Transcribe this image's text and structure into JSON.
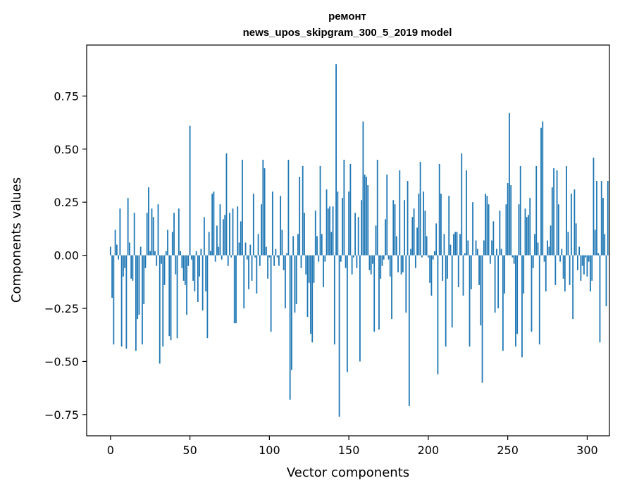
{
  "chart_data": {
    "type": "bar",
    "title_line1": "ремонт",
    "title_line2": "news_upos_skipgram_300_5_2019 model",
    "xlabel": "Vector components",
    "ylabel": "Components values",
    "xlim": [
      -15,
      314
    ],
    "ylim": [
      -0.85,
      0.99
    ],
    "xticks": [
      0,
      50,
      100,
      150,
      200,
      250,
      300
    ],
    "yticks": [
      -0.75,
      -0.5,
      -0.25,
      0.0,
      0.25,
      0.5,
      0.75
    ],
    "xtick_labels": [
      "0",
      "50",
      "100",
      "150",
      "200",
      "250",
      "300"
    ],
    "ytick_labels": [
      "−0.75",
      "−0.50",
      "−0.25",
      "0.00",
      "0.25",
      "0.50",
      "0.75"
    ],
    "bar_color": "#1f77b4",
    "values": [
      0.04,
      -0.2,
      -0.42,
      0.12,
      0.05,
      -0.02,
      0.22,
      -0.43,
      -0.1,
      -0.06,
      -0.44,
      0.27,
      0.06,
      -0.11,
      -0.12,
      0.2,
      -0.45,
      -0.3,
      -0.28,
      0.04,
      -0.42,
      -0.23,
      -0.06,
      0.2,
      0.32,
      0.02,
      0.22,
      0.18,
      0.02,
      -0.05,
      0.24,
      -0.51,
      -0.04,
      -0.43,
      -0.14,
      0.02,
      0.12,
      -0.38,
      -0.4,
      0.11,
      0.2,
      -0.09,
      -0.39,
      0.22,
      0.02,
      -0.06,
      -0.12,
      -0.14,
      -0.28,
      -0.05,
      0.61,
      -0.02,
      -0.12,
      -0.17,
      0.02,
      -0.22,
      -0.1,
      0.03,
      -0.26,
      0.18,
      -0.17,
      -0.39,
      0.11,
      0.02,
      0.29,
      0.3,
      -0.03,
      0.14,
      0.04,
      0.24,
      -0.02,
      0.17,
      0.19,
      0.48,
      -0.05,
      0.2,
      -0.01,
      0.22,
      -0.32,
      -0.32,
      0.23,
      0.06,
      0.16,
      0.45,
      -0.25,
      0.06,
      -0.02,
      -0.16,
      0.05,
      -0.12,
      0.29,
      -0.01,
      -0.18,
      0.1,
      -0.05,
      0.24,
      0.45,
      0.41,
      0.04,
      -0.11,
      -0.01,
      -0.36,
      0.3,
      -0.05,
      0.03,
      -0.01,
      -0.05,
      0.28,
      0.12,
      -0.07,
      -0.25,
      0.01,
      0.45,
      -0.68,
      -0.54,
      0.09,
      -0.27,
      -0.23,
      0.1,
      0.37,
      -0.06,
      0.42,
      0.2,
      -0.09,
      -0.29,
      -0.13,
      -0.37,
      -0.41,
      -0.13,
      0.21,
      0.09,
      -0.03,
      0.42,
      0.1,
      -0.15,
      -0.03,
      0.31,
      0.22,
      0.23,
      0.11,
      0.23,
      -0.42,
      0.9,
      0.3,
      -0.76,
      -0.03,
      0.27,
      0.45,
      -0.06,
      -0.55,
      0.3,
      0.43,
      -0.09,
      -0.01,
      0.2,
      -0.06,
      0.18,
      -0.5,
      0.26,
      0.63,
      0.38,
      0.37,
      0.33,
      -0.07,
      -0.09,
      -0.04,
      -0.36,
      0.14,
      0.45,
      -0.35,
      -0.11,
      -0.05,
      -0.02,
      0.17,
      0.38,
      -0.02,
      -0.1,
      -0.3,
      0.26,
      0.24,
      0.09,
      -0.08,
      0.4,
      -0.09,
      -0.08,
      0.26,
      -0.27,
      0.35,
      -0.71,
      0.03,
      0.18,
      0.22,
      -0.06,
      0.13,
      0.29,
      0.44,
      -0.01,
      0.3,
      0.21,
      0.09,
      -0.01,
      -0.13,
      -0.19,
      -0.02,
      0.02,
      0.15,
      -0.56,
      0.43,
      0.29,
      -0.12,
      0.1,
      -0.43,
      -0.11,
      0.28,
      0.05,
      -0.34,
      0.1,
      0.11,
      0.11,
      -0.15,
      0.1,
      0.48,
      -0.19,
      0.01,
      0.4,
      0.07,
      -0.43,
      -0.16,
      0.25,
      0.0,
      0.07,
      0.03,
      -0.14,
      -0.33,
      -0.6,
      0.07,
      0.29,
      0.28,
      0.24,
      -0.04,
      0.07,
      0.16,
      -0.27,
      0.03,
      -0.25,
      0.21,
      0.03,
      -0.45,
      -0.18,
      0.24,
      0.34,
      0.67,
      0.33,
      -0.01,
      -0.04,
      -0.43,
      -0.37,
      0.24,
      0.42,
      -0.48,
      -0.18,
      0.22,
      0.18,
      0.19,
      0.27,
      -0.36,
      -0.06,
      0.1,
      0.42,
      0.06,
      -0.42,
      0.6,
      0.63,
      -0.03,
      -0.17,
      0.07,
      0.04,
      0.14,
      0.32,
      0.41,
      -0.14,
      0.4,
      0.24,
      -0.03,
      0.03,
      -0.11,
      -0.17,
      0.42,
      0.11,
      -0.14,
      0.29,
      -0.3,
      0.31,
      0.15,
      -0.07,
      0.04,
      -0.12,
      -0.05,
      -0.09,
      -0.01,
      -0.1,
      -0.03,
      -0.17,
      -0.12,
      0.46,
      0.12,
      0.35,
      0.01,
      -0.41,
      0.35,
      0.27,
      0.1,
      -0.24,
      0.35
    ]
  }
}
